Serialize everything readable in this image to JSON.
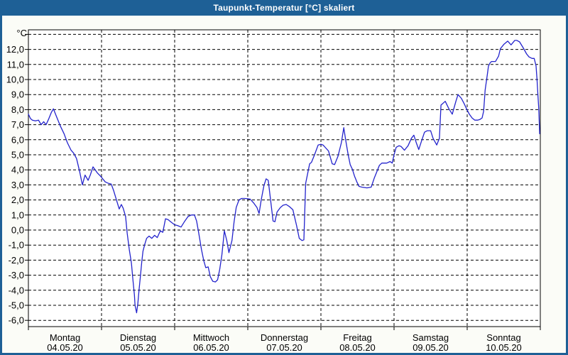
{
  "window": {
    "title": "Taupunkt-Temperatur [°C] skaliert"
  },
  "colors": {
    "frame": "#1e6096",
    "title_text": "#ffffff",
    "content_bg": "#fbfcf7",
    "plot_bg": "#ffffff",
    "grid": "#000000",
    "axis": "#000000",
    "label_text": "#000000",
    "series_line": "#2323cc"
  },
  "chart_data": {
    "type": "line",
    "title": "Taupunkt-Temperatur [°C] skaliert",
    "ylabel": "°C",
    "ylim": [
      -6.5,
      13.5
    ],
    "ytick_step": 1,
    "ytick_labels_top_to_bottom": [
      "12,0",
      "11,0",
      "10,0",
      "9,0",
      "8,0",
      "7,0",
      "6,0",
      "5,0",
      "4,0",
      "3,0",
      "2,0",
      "1,0",
      "0,0",
      "-1,0",
      "-2,0",
      "-3,0",
      "-4,0",
      "-5,0",
      "-6,0"
    ],
    "grid": "dashed-black, horizontal every 1°C (unlabeled top line at 13.0), vertical at day boundaries",
    "legend": "none",
    "x_days": [
      {
        "name": "Montag",
        "date": "04.05.20"
      },
      {
        "name": "Dienstag",
        "date": "05.05.20"
      },
      {
        "name": "Mittwoch",
        "date": "06.05.20"
      },
      {
        "name": "Donnerstag",
        "date": "07.05.20"
      },
      {
        "name": "Freitag",
        "date": "08.05.20"
      },
      {
        "name": "Samstag",
        "date": "09.05.20"
      },
      {
        "name": "Sonntag",
        "date": "10.05.20"
      }
    ],
    "x_hours_range": [
      0,
      168
    ],
    "series": [
      {
        "name": "Taupunkt-Temperatur",
        "color_ref": "series_line",
        "points_hour_value": [
          [
            0,
            7.7
          ],
          [
            0.7,
            7.4
          ],
          [
            1.3,
            7.3
          ],
          [
            2.3,
            7.25
          ],
          [
            3.3,
            7.3
          ],
          [
            4.2,
            7.0
          ],
          [
            5.0,
            7.2
          ],
          [
            5.8,
            7.0
          ],
          [
            6.6,
            7.35
          ],
          [
            7.5,
            7.8
          ],
          [
            8.2,
            8.05
          ],
          [
            9.3,
            7.5
          ],
          [
            10.5,
            6.9
          ],
          [
            11.7,
            6.4
          ],
          [
            12.8,
            5.8
          ],
          [
            14.0,
            5.3
          ],
          [
            14.9,
            5.1
          ],
          [
            15.8,
            4.75
          ],
          [
            16.8,
            3.9
          ],
          [
            17.7,
            3.0
          ],
          [
            18.6,
            3.65
          ],
          [
            19.6,
            3.3
          ],
          [
            20.4,
            3.7
          ],
          [
            21.2,
            4.2
          ],
          [
            22.6,
            3.8
          ],
          [
            23.8,
            3.55
          ],
          [
            25.2,
            3.2
          ],
          [
            26.3,
            3.1
          ],
          [
            27.2,
            3.05
          ],
          [
            28.0,
            2.6
          ],
          [
            28.9,
            2.0
          ],
          [
            29.8,
            1.4
          ],
          [
            30.5,
            1.7
          ],
          [
            31.1,
            1.45
          ],
          [
            31.9,
            0.9
          ],
          [
            32.4,
            -0.2
          ],
          [
            33.1,
            -1.3
          ],
          [
            33.8,
            -2.2
          ],
          [
            34.3,
            -3.3
          ],
          [
            34.8,
            -4.3
          ],
          [
            35.0,
            -5.0
          ],
          [
            35.2,
            -5.2
          ],
          [
            35.5,
            -5.5
          ],
          [
            35.9,
            -4.9
          ],
          [
            36.3,
            -4.0
          ],
          [
            36.8,
            -3.0
          ],
          [
            37.2,
            -2.1
          ],
          [
            37.6,
            -1.4
          ],
          [
            38.2,
            -0.95
          ],
          [
            38.8,
            -0.55
          ],
          [
            39.6,
            -0.4
          ],
          [
            40.5,
            -0.55
          ],
          [
            41.4,
            -0.35
          ],
          [
            42.3,
            -0.5
          ],
          [
            43.3,
            -0.05
          ],
          [
            44.1,
            -0.15
          ],
          [
            45.0,
            0.75
          ],
          [
            45.8,
            0.7
          ],
          [
            47.0,
            0.5
          ],
          [
            48.0,
            0.35
          ],
          [
            48.9,
            0.3
          ],
          [
            50.1,
            0.2
          ],
          [
            51.2,
            0.55
          ],
          [
            52.4,
            0.9
          ],
          [
            53.5,
            1.0
          ],
          [
            54.5,
            1.0
          ],
          [
            55.2,
            0.6
          ],
          [
            55.9,
            -0.2
          ],
          [
            56.8,
            -1.3
          ],
          [
            57.5,
            -2.0
          ],
          [
            58.2,
            -2.5
          ],
          [
            59.0,
            -2.45
          ],
          [
            59.7,
            -3.1
          ],
          [
            60.5,
            -3.4
          ],
          [
            61.4,
            -3.45
          ],
          [
            62.1,
            -3.3
          ],
          [
            62.8,
            -2.6
          ],
          [
            63.5,
            -1.65
          ],
          [
            64.3,
            -0.05
          ],
          [
            65.1,
            -0.7
          ],
          [
            65.8,
            -1.5
          ],
          [
            66.8,
            -0.7
          ],
          [
            67.5,
            0.55
          ],
          [
            68.2,
            1.5
          ],
          [
            69.1,
            2.0
          ],
          [
            70.0,
            2.1
          ],
          [
            71.0,
            2.1
          ],
          [
            72.0,
            2.08
          ],
          [
            72.8,
            2.05
          ],
          [
            73.9,
            1.8
          ],
          [
            75.0,
            1.5
          ],
          [
            75.7,
            1.1
          ],
          [
            76.4,
            2.0
          ],
          [
            77.3,
            2.95
          ],
          [
            78.0,
            3.4
          ],
          [
            78.7,
            3.3
          ],
          [
            79.6,
            1.8
          ],
          [
            80.3,
            0.6
          ],
          [
            80.9,
            0.55
          ],
          [
            81.6,
            1.2
          ],
          [
            82.7,
            1.5
          ],
          [
            83.6,
            1.65
          ],
          [
            84.6,
            1.7
          ],
          [
            85.7,
            1.55
          ],
          [
            86.8,
            1.35
          ],
          [
            88.0,
            0.3
          ],
          [
            88.9,
            -0.55
          ],
          [
            89.8,
            -0.7
          ],
          [
            90.4,
            -0.65
          ],
          [
            91.0,
            3.1
          ],
          [
            92.3,
            4.4
          ],
          [
            92.9,
            4.5
          ],
          [
            93.9,
            5.0
          ],
          [
            95.1,
            5.65
          ],
          [
            96.0,
            5.7
          ],
          [
            96.7,
            5.65
          ],
          [
            97.6,
            5.45
          ],
          [
            98.5,
            5.25
          ],
          [
            99.7,
            4.4
          ],
          [
            100.5,
            4.35
          ],
          [
            101.6,
            4.9
          ],
          [
            102.7,
            5.8
          ],
          [
            103.5,
            6.8
          ],
          [
            104.1,
            6.0
          ],
          [
            104.9,
            5.05
          ],
          [
            105.6,
            4.35
          ],
          [
            106.3,
            4.05
          ],
          [
            107.0,
            3.6
          ],
          [
            107.8,
            3.2
          ],
          [
            108.5,
            2.9
          ],
          [
            109.5,
            2.85
          ],
          [
            111.1,
            2.8
          ],
          [
            112.5,
            2.85
          ],
          [
            113.5,
            3.45
          ],
          [
            114.5,
            3.95
          ],
          [
            115.2,
            4.3
          ],
          [
            116.0,
            4.45
          ],
          [
            117.6,
            4.45
          ],
          [
            118.7,
            4.55
          ],
          [
            119.4,
            4.45
          ],
          [
            120.0,
            5.0
          ],
          [
            120.7,
            5.5
          ],
          [
            121.6,
            5.6
          ],
          [
            122.3,
            5.55
          ],
          [
            123.4,
            5.3
          ],
          [
            124.6,
            5.6
          ],
          [
            125.7,
            6.1
          ],
          [
            126.5,
            6.3
          ],
          [
            127.3,
            5.8
          ],
          [
            128.1,
            5.35
          ],
          [
            129.0,
            5.9
          ],
          [
            130.0,
            6.5
          ],
          [
            130.9,
            6.6
          ],
          [
            132.0,
            6.6
          ],
          [
            132.8,
            6.1
          ],
          [
            134.0,
            5.65
          ],
          [
            134.9,
            6.1
          ],
          [
            135.4,
            8.3
          ],
          [
            136.8,
            8.55
          ],
          [
            138.0,
            8.05
          ],
          [
            139.1,
            7.7
          ],
          [
            140.3,
            8.55
          ],
          [
            141.0,
            9.0
          ],
          [
            142.1,
            8.75
          ],
          [
            143.0,
            8.4
          ],
          [
            143.8,
            8.05
          ],
          [
            144.7,
            7.7
          ],
          [
            145.6,
            7.45
          ],
          [
            146.5,
            7.3
          ],
          [
            147.4,
            7.3
          ],
          [
            148.2,
            7.35
          ],
          [
            148.9,
            7.45
          ],
          [
            149.4,
            7.9
          ],
          [
            149.9,
            9.3
          ],
          [
            150.6,
            10.3
          ],
          [
            151.0,
            10.9
          ],
          [
            151.5,
            11.1
          ],
          [
            152.0,
            11.2
          ],
          [
            153.3,
            11.2
          ],
          [
            154.3,
            11.55
          ],
          [
            154.9,
            12.05
          ],
          [
            156.1,
            12.35
          ],
          [
            157.3,
            12.55
          ],
          [
            158.4,
            12.3
          ],
          [
            159.6,
            12.6
          ],
          [
            160.3,
            12.6
          ],
          [
            161.2,
            12.5
          ],
          [
            162.4,
            12.1
          ],
          [
            163.5,
            11.7
          ],
          [
            164.3,
            11.5
          ],
          [
            165.3,
            11.4
          ],
          [
            166.0,
            11.4
          ],
          [
            166.6,
            10.9
          ],
          [
            166.9,
            10.05
          ],
          [
            167.2,
            9.0
          ],
          [
            167.5,
            8.0
          ],
          [
            167.8,
            6.4
          ]
        ]
      }
    ]
  }
}
